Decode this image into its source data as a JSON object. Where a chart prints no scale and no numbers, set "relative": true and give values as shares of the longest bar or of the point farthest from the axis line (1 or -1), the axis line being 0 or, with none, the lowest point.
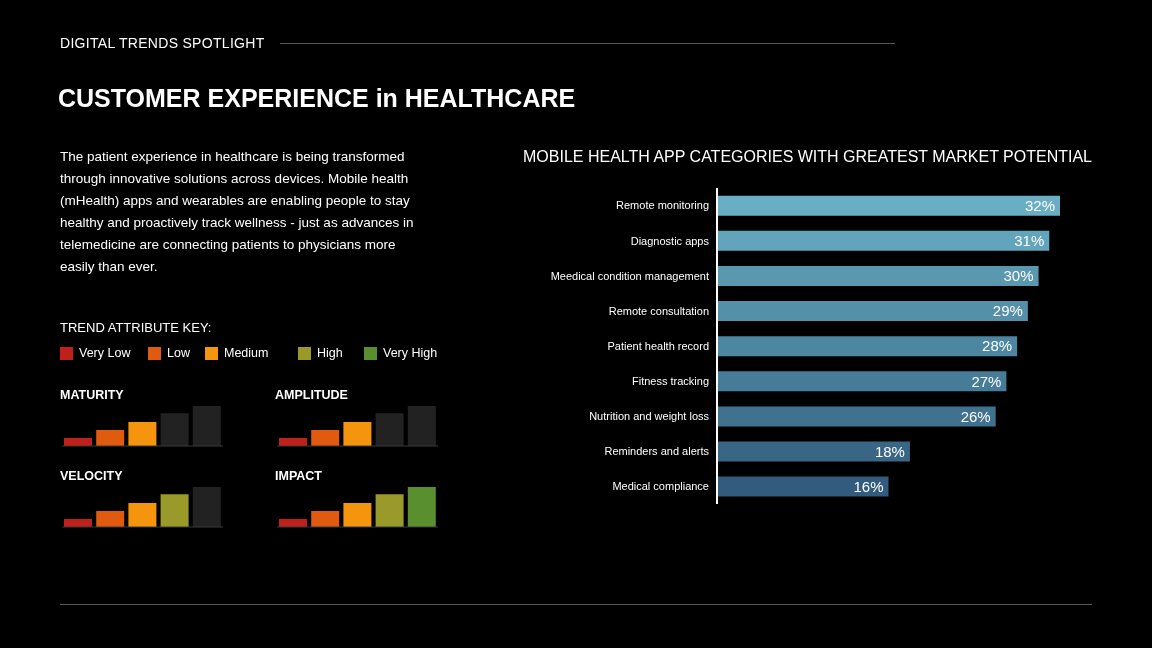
{
  "chart_data": [
    {
      "type": "other",
      "subtitle": "DIGITAL TRENDS SPOTLIGHT",
      "title": "CUSTOMER EXPERIENCE in HEALTHCARE",
      "annotations": [
        "The patient experience in healthcare is being transformed through innovative solutions across devices.  Mobile health (mHealth) apps and wearables are enabling people to stay healthy and proactively track wellness - just as advances in telemedicine are connecting patients to physicians more easily than ever.",
        "TREND ATTRIBUTE KEY:",
        "Very Low",
        "Low",
        "Medium",
        "High",
        "Very High"
      ]
    },
    {
      "type": "bar",
      "relative": true,
      "title": "MATURITY",
      "categories": [
        null,
        null,
        null,
        null,
        null
      ],
      "values": [
        0.2,
        0.4,
        0.6,
        0.82,
        1
      ],
      "colors": [
        "#c0201c",
        "#e05a10",
        "#f5950e",
        "#222222",
        "#222222"
      ]
    },
    {
      "type": "bar",
      "relative": true,
      "title": "AMPLITUDE",
      "categories": [
        null,
        null,
        null,
        null,
        null
      ],
      "values": [
        0.2,
        0.4,
        0.6,
        0.82,
        1
      ],
      "colors": [
        "#c0201c",
        "#e05a10",
        "#f5950e",
        "#222222",
        "#222222"
      ]
    },
    {
      "type": "bar",
      "relative": true,
      "title": "VELOCITY",
      "categories": [
        null,
        null,
        null,
        null,
        null
      ],
      "values": [
        0.2,
        0.4,
        0.6,
        0.82,
        1
      ],
      "colors": [
        "#c0201c",
        "#e05a10",
        "#f5950e",
        "#9a9a2a",
        "#222222"
      ]
    },
    {
      "type": "bar",
      "relative": true,
      "title": "IMPACT",
      "categories": [
        null,
        null,
        null,
        null,
        null
      ],
      "values": [
        0.2,
        0.4,
        0.6,
        0.82,
        1
      ],
      "colors": [
        "#c0201c",
        "#e05a10",
        "#f5950e",
        "#9a9a2a",
        "#5a8f30"
      ]
    },
    {
      "type": "bar",
      "orientation": "horizontal",
      "title": "MOBILE HEALTH APP CATEGORIES WITH GREATEST MARKET POTENTIAL",
      "categories": [
        "Remote monitoring",
        "Diagnostic apps",
        "Meedical condition management",
        "Remote consultation",
        "Patient health record",
        "Fitness tracking",
        "Nutrition and weight loss",
        "Reminders and alerts",
        "Medical compliance"
      ],
      "values": [
        32,
        31,
        30,
        29,
        28,
        27,
        26,
        18,
        16
      ],
      "value_labels": [
        "32%",
        "31%",
        "30%",
        "29%",
        "28%",
        "27%",
        "26%",
        "18%",
        "16%"
      ],
      "colors": [
        "#6aaec4",
        "#62a4bb",
        "#5a98b0",
        "#5490a8",
        "#4d86a0",
        "#467c97",
        "#40718e",
        "#3a6686",
        "#335b7d"
      ]
    }
  ]
}
